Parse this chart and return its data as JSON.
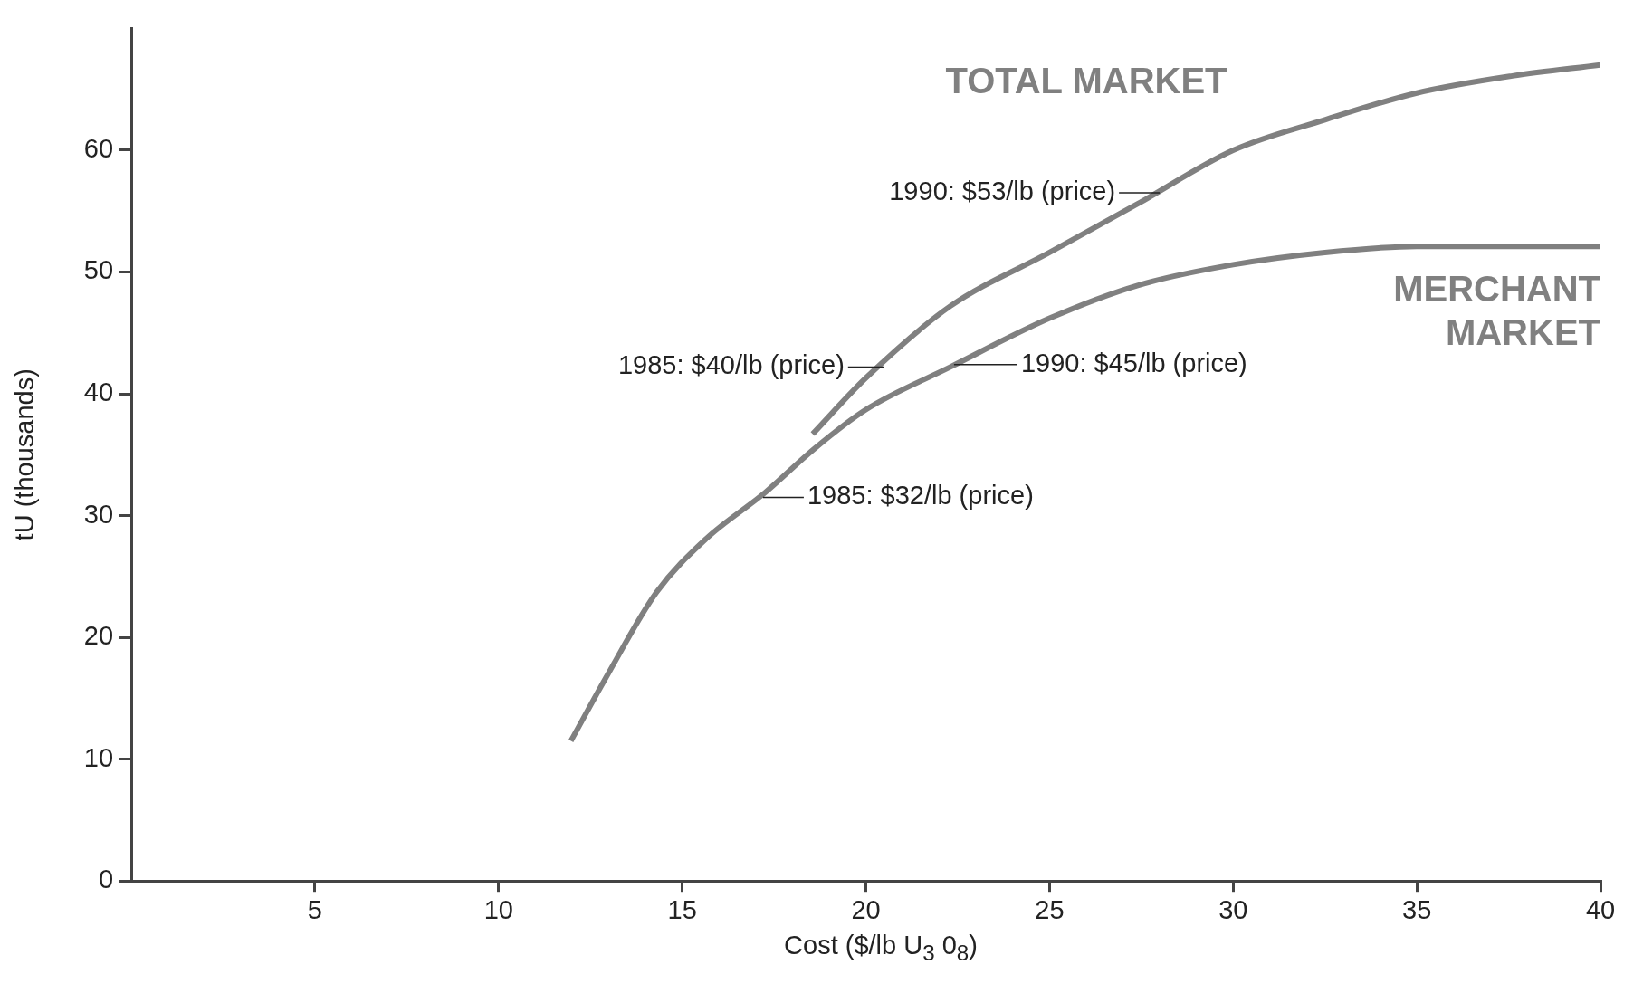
{
  "chart_data": {
    "type": "line",
    "xlabel": "Cost ($/lb U$_{3}$ 0$_{8}$)",
    "ylabel": "tU (thousands)",
    "xlim": [
      0,
      40
    ],
    "xticks": [
      5,
      10,
      15,
      20,
      25,
      30,
      35,
      40
    ],
    "ylim": [
      0,
      70
    ],
    "yticks": [
      0,
      10,
      20,
      30,
      40,
      50,
      60
    ],
    "grid": false,
    "legend": false,
    "marker": "none",
    "line_style": "solid",
    "series": [
      {
        "name": "TOTAL MARKET",
        "color": "#808080",
        "x": [
          18.55,
          20,
          22.3,
          25,
          27.4,
          30,
          32.5,
          35,
          37.6,
          40
        ],
        "values": [
          36.7,
          41.3,
          47.2,
          51.6,
          55.6,
          60.0,
          62.5,
          64.7,
          66.1,
          67.0
        ]
      },
      {
        "name": "MERCHANT MARKET",
        "color": "#808080",
        "x": [
          11.97,
          12.98,
          14.3,
          15.65,
          17.26,
          18.6,
          20,
          22.3,
          25,
          27.4,
          30,
          32.5,
          35,
          40
        ],
        "values": [
          11.5,
          17.0,
          23.7,
          28.1,
          31.9,
          35.5,
          38.7,
          42.2,
          46.2,
          48.9,
          50.6,
          51.6,
          52.1,
          52.1
        ]
      }
    ],
    "annotations": [
      {
        "text": "1990: $53/lb (price)",
        "x": 28,
        "y": 56.5
      },
      {
        "text": "1985: $40/lb (price)",
        "x": 20.5,
        "y": 42.2
      },
      {
        "text": "1990: $45/lb (price)",
        "x": 22.4,
        "y": 42.4
      },
      {
        "text": "1985: $32/lb (price)",
        "x": 17.2,
        "y": 31.5
      }
    ]
  }
}
